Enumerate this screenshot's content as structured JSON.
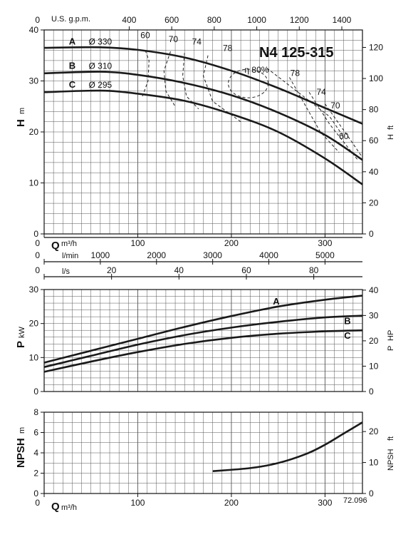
{
  "chart_data": [
    {
      "type": "line",
      "title": "N4 125-315",
      "xlabel": "Q",
      "xunit": "m³/h",
      "ylabel": "H",
      "yunit": "m",
      "y2label": "H",
      "y2unit": "ft",
      "xlim": [
        0,
        340
      ],
      "ylim": [
        0,
        40
      ],
      "y2ticks": [
        0,
        20,
        40,
        60,
        80,
        100,
        120
      ],
      "top_axis_label": "U.S. g.p.m.",
      "top_axis_ticks": [
        "400",
        "600",
        "800",
        "1000",
        "1200",
        "1400"
      ],
      "top_axis_values": [
        400,
        600,
        800,
        1000,
        1200,
        1400
      ],
      "grid": true,
      "series": [
        {
          "name": "A",
          "diameter": "Ø 330",
          "x": [
            0,
            60,
            100,
            150,
            200,
            250,
            300,
            340
          ],
          "values": [
            36.5,
            36.6,
            36.1,
            34.6,
            32.0,
            28.6,
            24.7,
            21.6
          ]
        },
        {
          "name": "B",
          "diameter": "Ø 310",
          "x": [
            0,
            60,
            100,
            150,
            200,
            250,
            300,
            340
          ],
          "values": [
            31.5,
            31.8,
            31.2,
            29.6,
            27.2,
            23.8,
            19.4,
            14.5
          ]
        },
        {
          "name": "C",
          "diameter": "Ø 295",
          "x": [
            0,
            60,
            100,
            150,
            200,
            250,
            300,
            340
          ],
          "values": [
            27.8,
            28.1,
            27.5,
            26.1,
            23.5,
            20.0,
            14.8,
            9.7
          ]
        }
      ],
      "efficiency_labels": [
        "60",
        "70",
        "74",
        "78",
        "η 80%",
        "78",
        "74",
        "70",
        "60"
      ]
    },
    {
      "type": "axes",
      "axes": [
        {
          "label": "Q",
          "unit": "m³/h",
          "ticks": [
            "0",
            "100",
            "200",
            "300"
          ]
        },
        {
          "label": "l/min",
          "ticks": [
            "0",
            "1000",
            "2000",
            "3000",
            "4000",
            "5000"
          ]
        },
        {
          "label": "l/s",
          "ticks": [
            "0",
            "20",
            "40",
            "60",
            "80"
          ]
        }
      ]
    },
    {
      "type": "line",
      "xlabel": "",
      "ylabel": "P",
      "yunit": "kW",
      "y2label": "P",
      "y2unit": "HP",
      "xlim": [
        0,
        340
      ],
      "ylim": [
        0,
        30
      ],
      "y2ticks": [
        0,
        10,
        20,
        30,
        40
      ],
      "grid": true,
      "series": [
        {
          "name": "A",
          "x": [
            0,
            50,
            100,
            150,
            200,
            250,
            300,
            340
          ],
          "values": [
            8.5,
            12.0,
            15.5,
            19.0,
            22.2,
            25.0,
            27.0,
            28.2
          ]
        },
        {
          "name": "B",
          "x": [
            0,
            50,
            100,
            150,
            200,
            250,
            300,
            340
          ],
          "values": [
            7.2,
            10.5,
            13.8,
            16.6,
            18.8,
            20.5,
            21.8,
            22.3
          ]
        },
        {
          "name": "C",
          "x": [
            0,
            50,
            100,
            150,
            200,
            250,
            300,
            340
          ],
          "values": [
            5.8,
            8.8,
            11.6,
            14.0,
            15.8,
            17.0,
            17.7,
            18.0
          ]
        }
      ]
    },
    {
      "type": "line",
      "xlabel": "Q",
      "xunit": "m³/h",
      "ylabel": "NPSH",
      "yunit": "m",
      "y2label": "NPSH",
      "y2unit": "ft",
      "xlim": [
        0,
        340
      ],
      "ylim": [
        0,
        8
      ],
      "y2ticks": [
        0,
        10,
        20
      ],
      "grid": true,
      "series": [
        {
          "name": "",
          "x": [
            180,
            220,
            250,
            280,
            300,
            320,
            340
          ],
          "values": [
            2.2,
            2.5,
            3.0,
            3.9,
            4.8,
            5.9,
            7.0
          ]
        }
      ],
      "code": "72.096"
    }
  ]
}
